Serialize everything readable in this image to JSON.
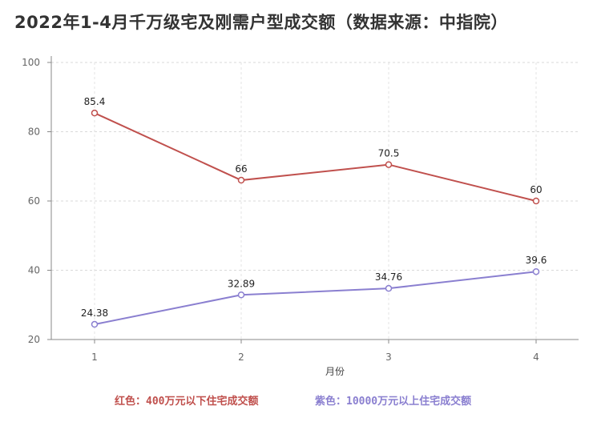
{
  "chart_data": {
    "type": "line",
    "title": "2022年1-4月千万级宅及刚需户型成交额（数据来源：中指院）",
    "xlabel": "月份",
    "ylabel": "",
    "x": [
      "1",
      "2",
      "3",
      "4"
    ],
    "ylim": [
      20,
      100
    ],
    "yticks": [
      "20",
      "40",
      "60",
      "80",
      "100"
    ],
    "grid": true,
    "legend_position": "bottom",
    "series": [
      {
        "name": "红色：400万元以下住宅成交额",
        "color": "#c0504d",
        "values": [
          85.4,
          66,
          70.5,
          60
        ],
        "labels": [
          "85.4",
          "66",
          "70.5",
          "60"
        ]
      },
      {
        "name": "紫色：10000万元以上住宅成交额",
        "color": "#8a7fd0",
        "values": [
          24.38,
          32.89,
          34.76,
          39.6
        ],
        "labels": [
          "24.38",
          "32.89",
          "34.76",
          "39.6"
        ]
      }
    ]
  }
}
